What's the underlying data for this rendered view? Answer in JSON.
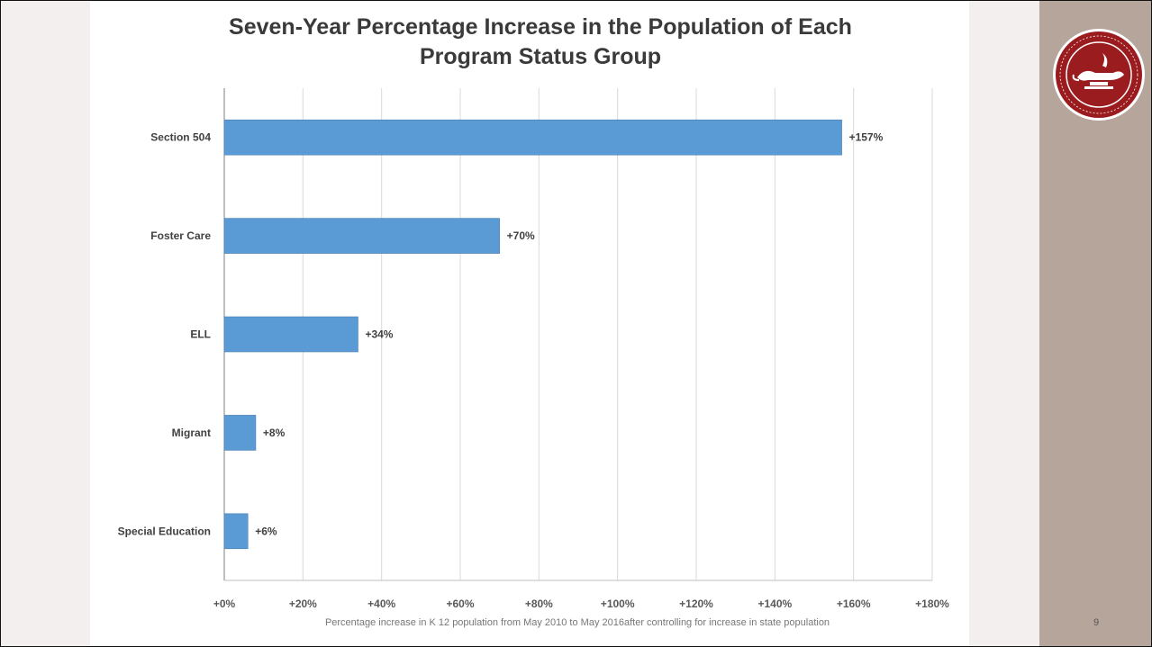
{
  "slide": {
    "page_number": "9",
    "seal_icon": "state-seal-lamp-icon",
    "colors": {
      "bar": "#5b9bd5",
      "right_panel": "#b6a59b",
      "seal_red": "#9b1c1f"
    }
  },
  "chart_data": {
    "type": "bar",
    "orientation": "horizontal",
    "title": "Seven-Year Percentage Increase in the Population of Each Program Status Group",
    "title_lines": [
      "Seven-Year Percentage Increase in the Population of Each",
      "Program Status Group"
    ],
    "xlabel": "Percentage increase in K 12 population from May 2010 to May 2016after controlling for increase in state population",
    "ylabel": "",
    "categories": [
      "Section 504",
      "Foster Care",
      "ELL",
      "Migrant",
      "Special Education"
    ],
    "values": [
      157,
      70,
      34,
      8,
      6
    ],
    "data_labels": [
      "+157%",
      "+70%",
      "+34%",
      "+8%",
      "+6%"
    ],
    "xlim": [
      0,
      180
    ],
    "x_ticks": [
      0,
      20,
      40,
      60,
      80,
      100,
      120,
      140,
      160,
      180
    ],
    "x_tick_labels": [
      "+0%",
      "+20%",
      "+40%",
      "+60%",
      "+80%",
      "+100%",
      "+120%",
      "+140%",
      "+160%",
      "+180%"
    ],
    "grid": true,
    "legend": "none"
  }
}
